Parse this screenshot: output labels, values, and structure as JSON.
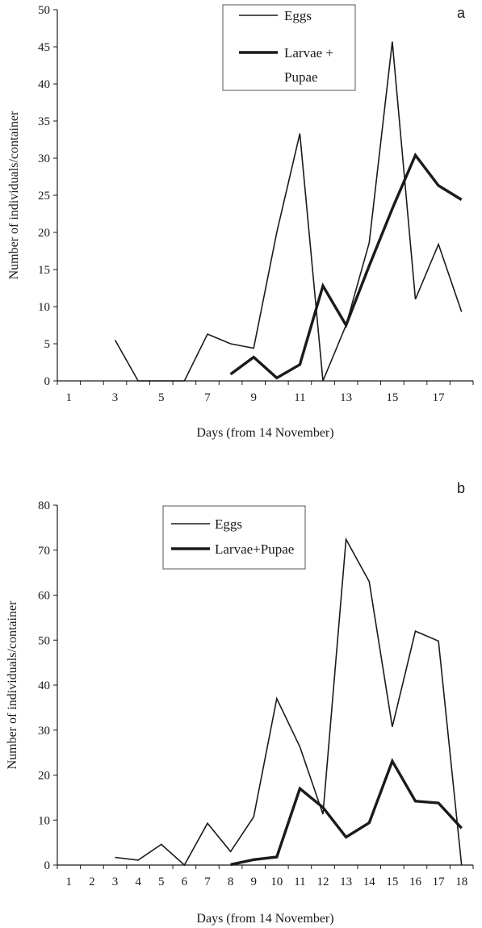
{
  "chart_data": [
    {
      "type": "line",
      "panel_label": "a",
      "title": "",
      "xlabel": "Days (from 14 November)",
      "ylabel": "Number of individuals/container",
      "xlim": [
        0.5,
        18.5
      ],
      "ylim": [
        0,
        50
      ],
      "x_ticks": [
        1,
        3,
        5,
        7,
        9,
        11,
        13,
        15,
        17
      ],
      "y_ticks": [
        0,
        5,
        10,
        15,
        20,
        25,
        30,
        35,
        40,
        45,
        50
      ],
      "grid": false,
      "legend_position": "top-center",
      "series": [
        {
          "name": "Eggs",
          "line_style": "thin",
          "color": "#1a1a1a",
          "x": [
            3,
            4,
            5,
            6,
            7,
            8,
            9,
            10,
            11,
            12,
            13,
            14,
            15,
            16,
            17,
            18
          ],
          "y": [
            5.5,
            0,
            0,
            0,
            6.3,
            5,
            4.4,
            20,
            33.3,
            0,
            7.5,
            18.6,
            45.7,
            11,
            18.4,
            9.3
          ]
        },
        {
          "name": "Larvae + Pupae",
          "line_style": "thick",
          "color": "#1a1a1a",
          "x": [
            8,
            9,
            10,
            11,
            12,
            13,
            14,
            15,
            16,
            17,
            18
          ],
          "y": [
            0.9,
            3.2,
            0.4,
            2.2,
            12.8,
            7.5,
            15.5,
            23.2,
            30.4,
            26.3,
            24.4
          ]
        }
      ]
    },
    {
      "type": "line",
      "panel_label": "b",
      "title": "",
      "xlabel": "Days (from 14 November)",
      "ylabel": "Number of individuals/container",
      "xlim": [
        0.5,
        18.5
      ],
      "ylim": [
        0,
        80
      ],
      "x_ticks": [
        1,
        2,
        3,
        4,
        5,
        6,
        7,
        8,
        9,
        10,
        11,
        12,
        13,
        14,
        15,
        16,
        17,
        18
      ],
      "y_ticks": [
        0,
        10,
        20,
        30,
        40,
        50,
        60,
        70,
        80
      ],
      "grid": false,
      "legend_position": "top-left",
      "series": [
        {
          "name": "Eggs",
          "line_style": "thin",
          "color": "#1a1a1a",
          "x": [
            3,
            4,
            5,
            6,
            7,
            8,
            9,
            10,
            11,
            12,
            13,
            14,
            15,
            16,
            17,
            18
          ],
          "y": [
            1.7,
            1.1,
            4.6,
            0,
            9.3,
            3,
            10.7,
            37,
            26.3,
            11.3,
            72.4,
            63,
            30.7,
            52,
            49.8,
            0
          ]
        },
        {
          "name": "Larvae+Pupae",
          "line_style": "thick",
          "color": "#1a1a1a",
          "x": [
            8,
            9,
            10,
            11,
            12,
            13,
            14,
            15,
            16,
            17,
            18
          ],
          "y": [
            0.1,
            1.2,
            1.8,
            17,
            12.8,
            6.2,
            9.4,
            23.1,
            14.2,
            13.8,
            8.2
          ]
        }
      ]
    }
  ]
}
